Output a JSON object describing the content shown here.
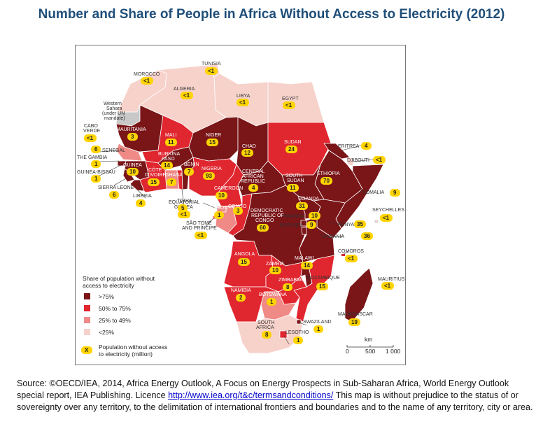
{
  "title": "Number and Share of People in Africa Without Access to Electricity (2012)",
  "colors": {
    "gt75": "#7a1518",
    "p50_75": "#e0262f",
    "p25_49": "#ef8a86",
    "lt25": "#f6d2cb",
    "badge": "#ffd400",
    "sea": "#ffffff",
    "no_data": "#c8c8c8",
    "title": "#1f4e79"
  },
  "countries": {
    "morocco": {
      "name": "MOROCCO",
      "value": "<1"
    },
    "tunisia": {
      "name": "TUNISIA",
      "value": "<1"
    },
    "algeria": {
      "name": "ALGERIA",
      "value": "<1"
    },
    "libya": {
      "name": "LIBYA",
      "value": "<1"
    },
    "egypt": {
      "name": "EGYPT",
      "value": "<1"
    },
    "western_sahara": {
      "name": "Western Sahara (under UN mandate)",
      "line1": "Western",
      "line2": "Sahara",
      "line3": "(under UN",
      "line4": "mandate)"
    },
    "cabo_verde": {
      "name": "CABO VERDE",
      "line1": "CABO",
      "line2": "VERDE",
      "value": "<1"
    },
    "mauritania": {
      "name": "MAURITANIA",
      "value": "3"
    },
    "mali": {
      "name": "MALI",
      "value": "11"
    },
    "niger": {
      "name": "NIGER",
      "value": "15"
    },
    "chad": {
      "name": "CHAD",
      "value": "12"
    },
    "sudan": {
      "name": "SUDAN",
      "value": "24"
    },
    "eritrea": {
      "name": "ERITREA",
      "value": "4"
    },
    "djibouti": {
      "name": "DJIBOUTI",
      "value": "<1"
    },
    "senegal": {
      "name": "SENEGAL",
      "value": "6"
    },
    "the_gambia": {
      "name": "THE GAMBIA",
      "value": "1"
    },
    "guinea_bissau": {
      "name": "GUINEA-BISSAU",
      "value": "1"
    },
    "guinea": {
      "name": "GUINEA",
      "value": "10"
    },
    "sierra_leone": {
      "name": "SIERRA LEONE",
      "value": "6"
    },
    "liberia": {
      "name": "LIBERIA",
      "value": "4"
    },
    "cote_divoire": {
      "name": "CÔTE D'IVOIRE",
      "line1": "CÔTE",
      "line2": "D'IVOIRE",
      "value": "15"
    },
    "burkina_faso": {
      "name": "BURKINA FASO",
      "line1": "BURKINA",
      "line2": "FASO",
      "value": "14"
    },
    "ghana": {
      "name": "GHANA",
      "value": "7"
    },
    "benin": {
      "name": "BENIN",
      "value": "7"
    },
    "togo": {
      "name": "TOGO",
      "value": "5"
    },
    "nigeria": {
      "name": "NIGERIA",
      "value": "93"
    },
    "cameroon": {
      "name": "CAMEROON",
      "value": "10"
    },
    "central_african_republic": {
      "name": "CENTRAL AFRICAN REPUBLIC",
      "line1": "CENTRAL",
      "line2": "AFRICAN",
      "line3": "REPUBLIC",
      "value": "4"
    },
    "south_sudan": {
      "name": "SOUTH SUDAN",
      "line1": "SOUTH",
      "line2": "SUDAN",
      "value": "11"
    },
    "ethiopia": {
      "name": "ETHIOPIA",
      "value": "70"
    },
    "somalia": {
      "name": "SOMALIA",
      "value": "9"
    },
    "equatorial_guinea": {
      "name": "EQUATORIAL GUINEA",
      "line1": "EQUATORIAL",
      "line2": "GUINEA",
      "value": "<1"
    },
    "gabon": {
      "name": "GABON",
      "value": "1"
    },
    "congo": {
      "name": "CONGO",
      "value": "3"
    },
    "dr_congo": {
      "name": "DEMOCRATIC REPUBLIC OF CONGO",
      "line1": "DEMOCRATIC",
      "line2": "REPUBLIC OF",
      "line3": "CONGO",
      "value": "60"
    },
    "uganda": {
      "name": "UGANDA",
      "value": "31"
    },
    "rwanda": {
      "name": "RWANDA",
      "value": "10"
    },
    "burundi": {
      "name": "BURUNDI",
      "value": "9"
    },
    "kenya": {
      "name": "KENYA",
      "value": "35"
    },
    "seychelles": {
      "name": "SEYCHELLES",
      "value": "<1"
    },
    "sao_tome": {
      "name": "SÃO TOMÉ AND PRÍNCIPE",
      "line1": "SÃO TOMÉ",
      "line2": "AND PRÍNCIPE",
      "value": "<1"
    },
    "tanzania": {
      "name": "TANZANIA",
      "value": "36"
    },
    "comoros": {
      "name": "COMOROS",
      "value": "<1"
    },
    "angola": {
      "name": "ANGOLA",
      "value": "15"
    },
    "zambia": {
      "name": "ZAMBIA",
      "value": "10"
    },
    "malawi": {
      "name": "MALAWI",
      "value": "14"
    },
    "mauritius": {
      "name": "MAURITIUS",
      "value": "<1"
    },
    "mozambique": {
      "name": "MOZAMBIQUE",
      "value": "15"
    },
    "zimbabwe": {
      "name": "ZIMBABWE",
      "value": "8"
    },
    "namibia": {
      "name": "NAMIBIA",
      "value": "2"
    },
    "botswana": {
      "name": "BOTSWANA",
      "value": "1"
    },
    "madagascar": {
      "name": "MADAGASCAR",
      "value": "19"
    },
    "swaziland": {
      "name": "SWAZILAND",
      "value": "1"
    },
    "south_africa": {
      "name": "SOUTH AFRICA",
      "line1": "SOUTH",
      "line2": "AFRICA",
      "value": "8"
    },
    "lesotho": {
      "name": "LESOTHO",
      "value": "1"
    }
  },
  "legend": {
    "heading1": "Share of population without",
    "heading2": "access to electricity",
    "items": [
      ">75%",
      "50% to 75%",
      "25% to 49%",
      "<25%"
    ],
    "badge_symbol": "X",
    "badge_line1": "Population without access",
    "badge_line2": "to electricity (million)"
  },
  "scale": {
    "unit": "km",
    "ticks": [
      "0",
      "500",
      "1 000"
    ]
  },
  "source": {
    "text_before": "Source: ©OECD/IEA, 2014, Africa Energy Outlook, A Focus on Energy Prospects in Sub-Saharan Africa, World Energy Outlook special report, IEA Publishing. Licence ",
    "link": "http://www.iea.org/t&c/termsandconditions/",
    "text_after": " This map is without prejudice to the status of or sovereignty over any territory, to the delimitation of international frontiers and boundaries and to the name of any territory, city or area."
  }
}
